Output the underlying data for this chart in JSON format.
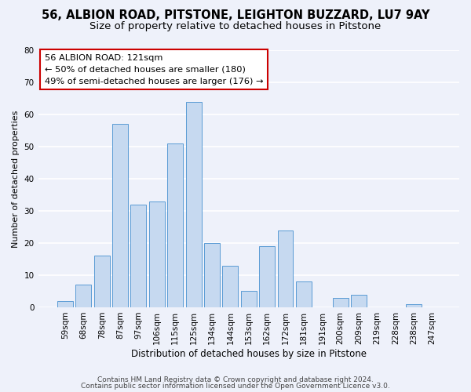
{
  "title": "56, ALBION ROAD, PITSTONE, LEIGHTON BUZZARD, LU7 9AY",
  "subtitle": "Size of property relative to detached houses in Pitstone",
  "xlabel": "Distribution of detached houses by size in Pitstone",
  "ylabel": "Number of detached properties",
  "categories": [
    "59sqm",
    "68sqm",
    "78sqm",
    "87sqm",
    "97sqm",
    "106sqm",
    "115sqm",
    "125sqm",
    "134sqm",
    "144sqm",
    "153sqm",
    "162sqm",
    "172sqm",
    "181sqm",
    "191sqm",
    "200sqm",
    "209sqm",
    "219sqm",
    "228sqm",
    "238sqm",
    "247sqm"
  ],
  "values": [
    2,
    7,
    16,
    57,
    32,
    33,
    51,
    64,
    20,
    13,
    5,
    19,
    24,
    8,
    0,
    3,
    4,
    0,
    0,
    1,
    0
  ],
  "bar_color": "#c6d9f0",
  "bar_edge_color": "#5a9bd5",
  "ylim": [
    0,
    80
  ],
  "yticks": [
    0,
    10,
    20,
    30,
    40,
    50,
    60,
    70,
    80
  ],
  "annotation_line1": "56 ALBION ROAD: 121sqm",
  "annotation_line2": "← 50% of detached houses are smaller (180)",
  "annotation_line3": "49% of semi-detached houses are larger (176) →",
  "annotation_box_color": "#ffffff",
  "annotation_box_edge_color": "#cc0000",
  "footer_line1": "Contains HM Land Registry data © Crown copyright and database right 2024.",
  "footer_line2": "Contains public sector information licensed under the Open Government Licence v3.0.",
  "background_color": "#eef1fa",
  "title_fontsize": 10.5,
  "subtitle_fontsize": 9.5
}
